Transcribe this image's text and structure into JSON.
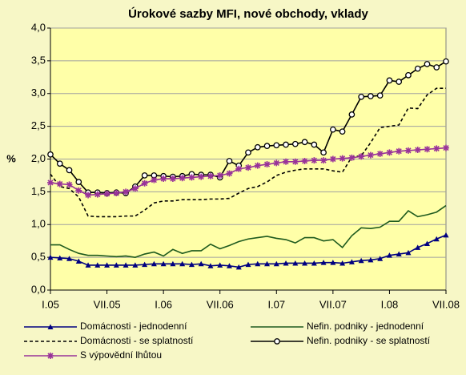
{
  "chart_data": {
    "type": "line",
    "title": "Úrokové sazby MFI, nové obchody, vklady",
    "y_label": "%",
    "categories": [
      "I.05",
      null,
      null,
      null,
      null,
      null,
      "VII.05",
      null,
      null,
      null,
      null,
      null,
      "I.06",
      null,
      null,
      null,
      null,
      null,
      "VII.06",
      null,
      null,
      null,
      null,
      null,
      "I.07",
      null,
      null,
      null,
      null,
      null,
      "VII.07",
      null,
      null,
      null,
      null,
      null,
      "I.08",
      null,
      null,
      null,
      null,
      null,
      "VII.08"
    ],
    "ylim": [
      0,
      4
    ],
    "yticks": [
      {
        "value": 0,
        "label": "0,0"
      },
      {
        "value": 0.5,
        "label": "0,5"
      },
      {
        "value": 1,
        "label": "1,0"
      },
      {
        "value": 1.5,
        "label": "1,5"
      },
      {
        "value": 2,
        "label": "2,0"
      },
      {
        "value": 2.5,
        "label": "2,5"
      },
      {
        "value": 3,
        "label": "3,0"
      },
      {
        "value": 3.5,
        "label": "3,5"
      },
      {
        "value": 4,
        "label": "4,0"
      }
    ],
    "grid": true,
    "legend": "bottom",
    "series": [
      {
        "name": "Domácnosti - jednodenní",
        "color": "#000080",
        "marker": "triangle",
        "dash": false,
        "values": [
          0.5,
          0.49,
          0.48,
          0.44,
          0.38,
          0.38,
          0.38,
          0.38,
          0.38,
          0.38,
          0.39,
          0.4,
          0.4,
          0.4,
          0.4,
          0.39,
          0.4,
          0.37,
          0.38,
          0.37,
          0.35,
          0.39,
          0.4,
          0.4,
          0.4,
          0.41,
          0.41,
          0.41,
          0.41,
          0.42,
          0.42,
          0.41,
          0.43,
          0.45,
          0.46,
          0.48,
          0.53,
          0.55,
          0.57,
          0.65,
          0.71,
          0.78,
          0.84
        ]
      },
      {
        "name": "Nefin. podniky - jednodenní",
        "color": "#1e5a1e",
        "marker": "none",
        "dash": false,
        "values": [
          0.69,
          0.69,
          0.62,
          0.56,
          0.53,
          0.53,
          0.52,
          0.51,
          0.52,
          0.5,
          0.55,
          0.58,
          0.52,
          0.62,
          0.56,
          0.6,
          0.6,
          0.7,
          0.63,
          0.68,
          0.74,
          0.78,
          0.8,
          0.82,
          0.79,
          0.77,
          0.72,
          0.8,
          0.8,
          0.75,
          0.77,
          0.65,
          0.83,
          0.95,
          0.94,
          0.96,
          1.05,
          1.05,
          1.21,
          1.12,
          1.15,
          1.19,
          1.29
        ]
      },
      {
        "name": "Domácnosti - se splatností",
        "color": "#000000",
        "marker": "none",
        "dash": true,
        "values": [
          1.77,
          1.58,
          1.55,
          1.42,
          1.13,
          1.12,
          1.12,
          1.12,
          1.13,
          1.13,
          1.22,
          1.33,
          1.36,
          1.36,
          1.38,
          1.38,
          1.38,
          1.39,
          1.39,
          1.4,
          1.48,
          1.55,
          1.58,
          1.65,
          1.75,
          1.8,
          1.83,
          1.85,
          1.85,
          1.85,
          1.82,
          1.8,
          2.03,
          2.05,
          2.25,
          2.48,
          2.5,
          2.52,
          2.78,
          2.77,
          2.98,
          3.08,
          3.08
        ]
      },
      {
        "name": "Nefin. podniky - se splatností",
        "color": "#000000",
        "marker": "circle",
        "dash": false,
        "values": [
          2.07,
          1.93,
          1.83,
          1.65,
          1.49,
          1.49,
          1.48,
          1.49,
          1.48,
          1.58,
          1.75,
          1.75,
          1.74,
          1.73,
          1.74,
          1.77,
          1.76,
          1.76,
          1.72,
          1.97,
          1.9,
          2.1,
          2.18,
          2.2,
          2.21,
          2.22,
          2.23,
          2.26,
          2.22,
          2.1,
          2.45,
          2.42,
          2.68,
          2.95,
          2.96,
          2.97,
          3.2,
          3.18,
          3.28,
          3.38,
          3.45,
          3.4,
          3.49
        ]
      },
      {
        "name": "S výpovědní lhůtou",
        "color": "#993399",
        "marker": "asterisk",
        "dash": false,
        "values": [
          1.64,
          1.62,
          1.61,
          1.52,
          1.45,
          1.46,
          1.47,
          1.48,
          1.5,
          1.55,
          1.63,
          1.68,
          1.7,
          1.7,
          1.71,
          1.72,
          1.73,
          1.74,
          1.75,
          1.78,
          1.85,
          1.87,
          1.9,
          1.92,
          1.94,
          1.96,
          1.96,
          1.97,
          1.98,
          1.98,
          2.0,
          2.01,
          2.02,
          2.04,
          2.06,
          2.08,
          2.1,
          2.12,
          2.13,
          2.14,
          2.15,
          2.16,
          2.17
        ]
      }
    ]
  }
}
